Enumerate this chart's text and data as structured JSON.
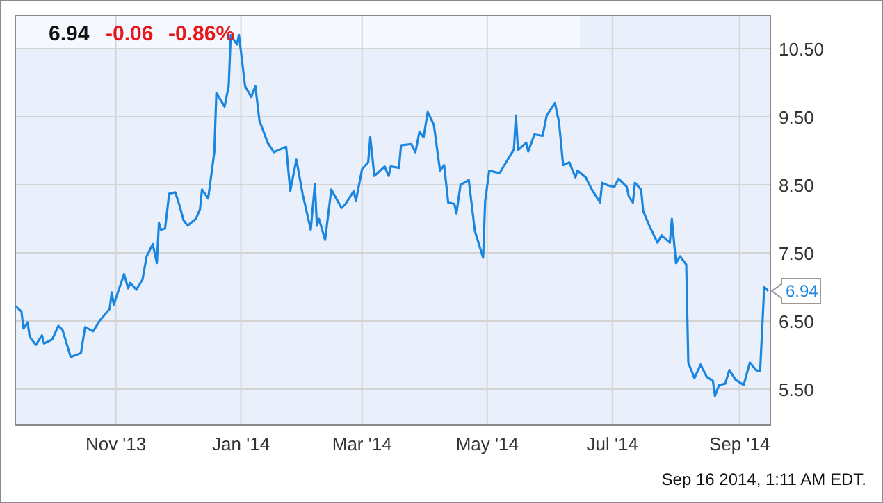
{
  "chart_data": {
    "type": "line",
    "title": "6.94",
    "annotations": [
      "-0.06",
      "-0.86%",
      "Sep 16 2014, 1:11 AM EDT."
    ],
    "x": [
      "2013-09-13",
      "2013-09-16",
      "2013-09-17",
      "2013-09-19",
      "2013-09-20",
      "2013-09-23",
      "2013-09-26",
      "2013-09-27",
      "2013-10-01",
      "2013-10-04",
      "2013-10-06",
      "2013-10-10",
      "2013-10-15",
      "2013-10-17",
      "2013-10-21",
      "2013-10-24",
      "2013-10-29",
      "2013-10-30",
      "2013-10-31",
      "2013-11-05",
      "2013-11-07",
      "2013-11-08",
      "2013-11-11",
      "2013-11-14",
      "2013-11-16",
      "2013-11-19",
      "2013-11-21",
      "2013-11-22",
      "2013-11-23",
      "2013-11-25",
      "2013-11-27",
      "2013-11-30",
      "2013-12-02",
      "2013-12-04",
      "2013-12-06",
      "2013-12-10",
      "2013-12-12",
      "2013-12-13",
      "2013-12-16",
      "2013-12-19",
      "2013-12-20",
      "2013-12-24",
      "2013-12-26",
      "2013-12-27",
      "2013-12-30",
      "2013-12-31",
      "2014-01-03",
      "2014-01-06",
      "2014-01-08",
      "2014-01-10",
      "2014-01-14",
      "2014-01-17",
      "2014-01-23",
      "2014-01-25",
      "2014-01-28",
      "2014-01-31",
      "2014-02-04",
      "2014-02-06",
      "2014-02-07",
      "2014-02-08",
      "2014-02-11",
      "2014-02-14",
      "2014-02-19",
      "2014-02-21",
      "2014-02-25",
      "2014-02-26",
      "2014-03-01",
      "2014-03-04",
      "2014-03-05",
      "2014-03-07",
      "2014-03-12",
      "2014-03-14",
      "2014-03-15",
      "2014-03-19",
      "2014-03-20",
      "2014-03-25",
      "2014-03-27",
      "2014-03-29",
      "2014-03-31",
      "2014-04-02",
      "2014-04-05",
      "2014-04-08",
      "2014-04-10",
      "2014-04-12",
      "2014-04-15",
      "2014-04-16",
      "2014-04-18",
      "2014-04-22",
      "2014-04-25",
      "2014-04-29",
      "2014-04-30",
      "2014-05-02",
      "2014-05-07",
      "2014-05-11",
      "2014-05-14",
      "2014-05-15",
      "2014-05-16",
      "2014-05-20",
      "2014-05-21",
      "2014-05-24",
      "2014-05-28",
      "2014-05-30",
      "2014-06-03",
      "2014-06-05",
      "2014-06-07",
      "2014-06-10",
      "2014-06-13",
      "2014-06-14",
      "2014-06-18",
      "2014-06-21",
      "2014-06-25",
      "2014-06-26",
      "2014-06-29",
      "2014-07-02",
      "2014-07-04",
      "2014-07-08",
      "2014-07-09",
      "2014-07-11",
      "2014-07-12",
      "2014-07-15",
      "2014-07-16",
      "2014-07-19",
      "2014-07-23",
      "2014-07-25",
      "2014-07-29",
      "2014-07-30",
      "2014-08-01",
      "2014-08-03",
      "2014-08-06",
      "2014-08-07",
      "2014-08-10",
      "2014-08-13",
      "2014-08-16",
      "2014-08-19",
      "2014-08-20",
      "2014-08-22",
      "2014-08-25",
      "2014-08-27",
      "2014-08-30",
      "2014-09-03",
      "2014-09-06",
      "2014-09-09",
      "2014-09-11",
      "2014-09-13",
      "2014-09-15"
    ],
    "series": [
      {
        "color": "#1a86e0",
        "values": [
          6.72,
          6.64,
          6.39,
          6.48,
          6.27,
          6.15,
          6.29,
          6.17,
          6.23,
          6.43,
          6.37,
          5.97,
          6.03,
          6.41,
          6.35,
          6.5,
          6.68,
          6.92,
          6.74,
          7.19,
          6.98,
          7.06,
          6.96,
          7.11,
          7.45,
          7.63,
          7.35,
          7.94,
          7.84,
          7.86,
          8.37,
          8.39,
          8.2,
          7.98,
          7.9,
          8.0,
          8.14,
          8.43,
          8.3,
          8.98,
          9.85,
          9.65,
          9.95,
          10.7,
          10.56,
          10.7,
          9.95,
          9.79,
          9.95,
          9.44,
          9.12,
          8.98,
          9.06,
          8.41,
          8.87,
          8.37,
          7.84,
          8.51,
          7.9,
          8.0,
          7.69,
          8.43,
          8.16,
          8.22,
          8.41,
          8.26,
          8.73,
          8.83,
          9.2,
          8.63,
          8.77,
          8.63,
          8.77,
          8.75,
          9.08,
          9.1,
          8.98,
          9.28,
          9.2,
          9.57,
          9.38,
          8.71,
          8.79,
          8.24,
          8.22,
          8.08,
          8.5,
          8.57,
          7.82,
          7.43,
          8.26,
          8.71,
          8.67,
          8.87,
          9.02,
          9.52,
          9.01,
          9.12,
          8.99,
          9.24,
          9.22,
          9.52,
          9.7,
          9.42,
          8.79,
          8.83,
          8.61,
          8.71,
          8.61,
          8.43,
          8.24,
          8.53,
          8.49,
          8.47,
          8.59,
          8.47,
          8.33,
          8.24,
          8.53,
          8.43,
          8.12,
          7.9,
          7.65,
          7.76,
          7.65,
          8.0,
          7.35,
          7.45,
          7.33,
          5.89,
          5.66,
          5.86,
          5.68,
          5.62,
          5.4,
          5.56,
          5.58,
          5.78,
          5.64,
          5.56,
          5.89,
          5.78,
          5.76,
          7.0,
          6.94
        ],
        "value_labels": [
          null,
          null,
          null,
          null,
          null,
          null,
          null,
          null,
          null,
          null,
          null,
          null,
          null,
          null,
          null,
          null,
          null,
          null,
          null,
          null,
          null,
          null,
          null,
          null,
          null,
          null,
          null,
          null,
          null,
          null,
          null,
          null,
          null,
          null,
          null,
          null,
          null,
          null,
          null,
          null,
          null,
          null,
          null,
          null,
          null,
          null,
          null,
          null,
          null,
          null,
          null,
          null,
          null,
          null,
          null,
          null,
          null,
          null,
          null,
          null,
          null,
          null,
          null,
          null,
          null,
          null,
          null,
          null,
          null,
          null,
          null,
          null,
          null,
          null,
          null,
          null,
          null,
          null,
          null,
          null,
          null,
          null,
          null,
          null,
          null,
          null,
          null,
          null,
          null,
          null,
          null,
          null,
          null,
          null,
          null,
          null,
          null,
          null,
          null,
          null,
          null,
          null,
          null,
          null,
          null,
          null,
          null,
          null,
          null,
          null,
          null,
          null,
          null,
          null,
          null,
          null,
          null,
          null,
          null,
          null,
          null,
          null,
          null,
          null,
          null,
          null,
          null,
          null,
          null,
          null,
          null,
          null,
          null,
          null,
          null,
          null,
          null,
          null,
          null,
          null,
          null,
          null,
          null,
          null,
          "6.94"
        ]
      }
    ],
    "xlim": [
      "2013-09-13",
      "2014-09-16"
    ],
    "xticks": [
      {
        "value": "2013-11-01",
        "label": "Nov '13"
      },
      {
        "value": "2014-01-01",
        "label": "Jan '14"
      },
      {
        "value": "2014-03-01",
        "label": "Mar '14"
      },
      {
        "value": "2014-05-01",
        "label": "May '14"
      },
      {
        "value": "2014-07-01",
        "label": "Jul '14"
      },
      {
        "value": "2014-09-01",
        "label": "Sep '14"
      }
    ],
    "ylim": [
      4.97,
      10.99
    ],
    "yticks": [
      {
        "value": 5.5,
        "label": "5.50"
      },
      {
        "value": 6.5,
        "label": "6.50"
      },
      {
        "value": 7.5,
        "label": "7.50"
      },
      {
        "value": 8.5,
        "label": "8.50"
      },
      {
        "value": 9.5,
        "label": "9.50"
      },
      {
        "value": 10.5,
        "label": "10.50"
      }
    ],
    "grid": true
  }
}
